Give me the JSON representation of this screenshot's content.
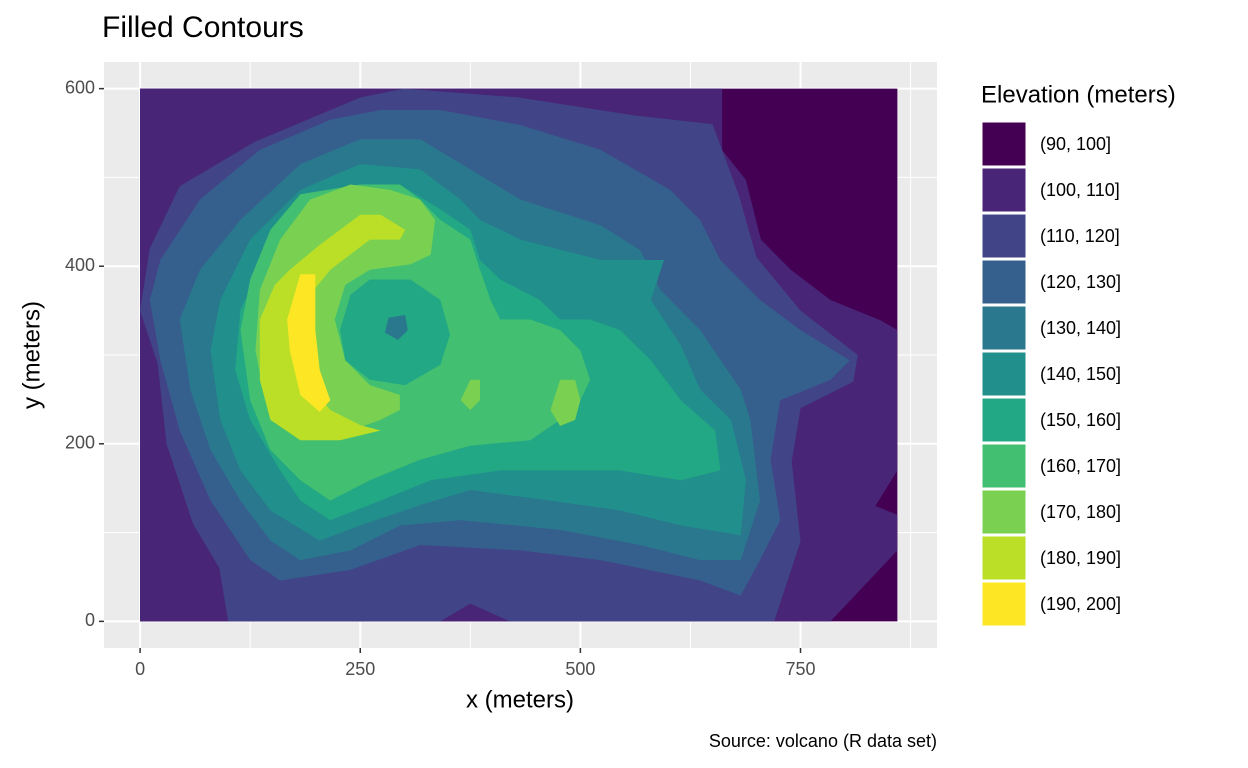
{
  "chart_data": {
    "type": "contour",
    "title": "Filled Contours",
    "x_label": "x (meters)",
    "y_label": "y (meters)",
    "caption": "Source: volcano (R data set)",
    "legend_title": "Elevation (meters)",
    "legend_position": "right",
    "grid": true,
    "xlim": [
      -41,
      905
    ],
    "ylim": [
      -30,
      630
    ],
    "xticks": [
      0,
      250,
      500,
      750
    ],
    "yticks": [
      0,
      200,
      400,
      600
    ],
    "series": [
      {
        "name": "(90, 100]",
        "color": "#440154",
        "regions": [
          {
            "x": [
              0,
              860,
              860,
              0
            ],
            "y": [
              0,
              0,
              600,
              600
            ]
          }
        ]
      },
      {
        "name": "(100, 110]",
        "color": "#482576",
        "regions": [
          {
            "x": [
              0,
              784,
              807,
              860,
              860,
              835,
              860,
              860,
              841,
              784,
              739,
              705,
              688,
              661,
              661,
              0
            ],
            "y": [
              0,
              0,
              24,
              80,
              120,
              130,
              170,
              328,
              339,
              362,
              396,
              430,
              497,
              531,
              600,
              600
            ]
          }
        ]
      },
      {
        "name": "(110, 120]",
        "color": "#414487",
        "regions": [
          {
            "x": [
              114,
              341,
              375,
              420,
              720,
              750,
              740,
              750,
              810,
              815,
              750,
              700,
              680,
              650,
              560,
              430,
              300,
              250,
              130,
              45,
              11,
              0,
              20,
              30,
              60,
              90,
              100
            ],
            "y": [
              0,
              0,
              20,
              0,
              0,
              90,
              180,
              240,
              270,
              300,
              350,
              410,
              480,
              560,
              570,
              590,
              600,
              590,
              540,
              490,
              420,
              350,
              290,
              200,
              110,
              60,
              0
            ]
          }
        ]
      },
      {
        "name": "(120, 130]",
        "color": "#35608D",
        "regions": [
          {
            "x": [
              159,
              239,
              318,
              432,
              523,
              636,
              682,
              704,
              727,
              716,
              727,
              784,
              806,
              750,
              704,
              659,
              636,
              602,
              523,
              432,
              341,
              273,
              216,
              136,
              68,
              23,
              11,
              23,
              45,
              80,
              125
            ],
            "y": [
              46,
              58,
              86,
              80,
              69,
              46,
              29,
              69,
              114,
              182,
              249,
              272,
              294,
              328,
              362,
              407,
              452,
              486,
              531,
              559,
              576,
              576,
              565,
              531,
              475,
              407,
              362,
              294,
              215,
              136,
              69
            ]
          }
        ]
      },
      {
        "name": "(130, 140]",
        "color": "#2A788E",
        "regions": [
          {
            "x": [
              182,
              239,
              295,
              364,
              477,
              568,
              636,
              682,
              704,
              693,
              682,
              636,
              591,
              568,
              523,
              432,
              375,
              318,
              250,
              182,
              114,
              68,
              45,
              57,
              80,
              114,
              148
            ],
            "y": [
              69,
              80,
              108,
              114,
              103,
              86,
              69,
              69,
              136,
              227,
              261,
              328,
              373,
              418,
              446,
              475,
              509,
              543,
              543,
              515,
              452,
              396,
              340,
              261,
              193,
              136,
              91
            ]
          }
        ],
        "holes": [
          {
            "x": [
              282,
              301,
              304,
              293,
              278
            ],
            "y": [
              342,
              345,
              328,
              317,
              325
            ]
          }
        ]
      },
      {
        "name": "(140, 150]",
        "color": "#21908C",
        "regions": [
          {
            "x": [
              204,
              250,
              318,
              375,
              466,
              545,
              614,
              682,
              688,
              671,
              636,
              614,
              580,
              595,
              523,
              432,
              386,
              364,
              318,
              250,
              182,
              125,
              91,
              80,
              91,
              114,
              148
            ],
            "y": [
              91,
              108,
              131,
              148,
              136,
              125,
              108,
              97,
              159,
              227,
              261,
              311,
              362,
              407,
              407,
              430,
              452,
              475,
              509,
              515,
              486,
              430,
              362,
              305,
              227,
              170,
              125
            ]
          }
        ]
      },
      {
        "name": "(150, 160]",
        "color": "#22A884",
        "regions": [
          {
            "x": [
              216,
              273,
              330,
              409,
              477,
              545,
              614,
              659,
              653,
              614,
              580,
              545,
              511,
              477,
              454,
              409,
              386,
              375,
              341,
              295,
              239,
              182,
              148,
              114,
              108,
              125,
              159,
              182
            ],
            "y": [
              114,
              136,
              159,
              170,
              170,
              170,
              159,
              170,
              215,
              249,
              294,
              328,
              340,
              340,
              362,
              385,
              407,
              441,
              464,
              492,
              486,
              464,
              418,
              351,
              283,
              227,
              170,
              136
            ]
          }
        ],
        "holes": [
          {
            "x": [
              227,
              239,
              261,
              307,
              341,
              352,
              341,
              301,
              261,
              233
            ],
            "y": [
              328,
              368,
              385,
              385,
              362,
              323,
              289,
              266,
              272,
              294
            ]
          }
        ]
      },
      {
        "name": "(160, 170]",
        "color": "#43BF71",
        "regions": [
          {
            "x": [
              216,
              261,
              318,
              375,
              443,
              477,
              500,
              511,
              500,
              477,
              443,
              409,
              398,
              386,
              375,
              341,
              318,
              295,
              250,
              182,
              148,
              125,
              114,
              125,
              148,
              182
            ],
            "y": [
              136,
              159,
              182,
              198,
              204,
              227,
              249,
              272,
              305,
              328,
              340,
              340,
              362,
              396,
              430,
              452,
              475,
              492,
              492,
              481,
              441,
              385,
              328,
              249,
              193,
              159
            ]
          }
        ]
      },
      {
        "name": "(170, 180]",
        "color": "#7AD151",
        "regions": [
          {
            "x": [
              204,
              239,
              273,
              295,
              295,
              261,
              233,
              221,
              233,
              261,
              307,
              330,
              335,
              318,
              284,
              239,
              193,
              159,
              136,
              131,
              142,
              170
            ],
            "y": [
              204,
              215,
              227,
              238,
              255,
              266,
              294,
              340,
              379,
              396,
              402,
              413,
              452,
              475,
              486,
              492,
              475,
              430,
              373,
              305,
              249,
              215
            ]
          },
          {
            "x": [
              364,
              375,
              386,
              386,
              375
            ],
            "y": [
              249,
              272,
              272,
              249,
              238
            ]
          },
          {
            "x": [
              466,
              477,
              494,
              500,
              494,
              477
            ],
            "y": [
              238,
              272,
              272,
              249,
              227,
              220
            ]
          }
        ]
      },
      {
        "name": "(180, 190]",
        "color": "#BBDF27",
        "regions": [
          {
            "x": [
              153,
              170,
              204,
              250,
              273,
              301,
              295,
              261,
              216,
              188,
              182,
              188,
              216,
              250,
              273,
              227,
              182,
              148,
              136,
              136
            ],
            "y": [
              379,
              396,
              424,
              458,
              458,
              441,
              430,
              430,
              396,
              362,
              328,
              272,
              238,
              221,
              215,
              204,
              204,
              227,
              272,
              340
            ]
          }
        ]
      },
      {
        "name": "(190, 200]",
        "color": "#FDE725",
        "regions": [
          {
            "x": [
              182,
              199,
              199,
              204,
              216,
              204,
              182,
              170,
              167
            ],
            "y": [
              391,
              391,
              328,
              283,
              249,
              236,
              255,
              305,
              340
            ]
          }
        ]
      }
    ]
  }
}
